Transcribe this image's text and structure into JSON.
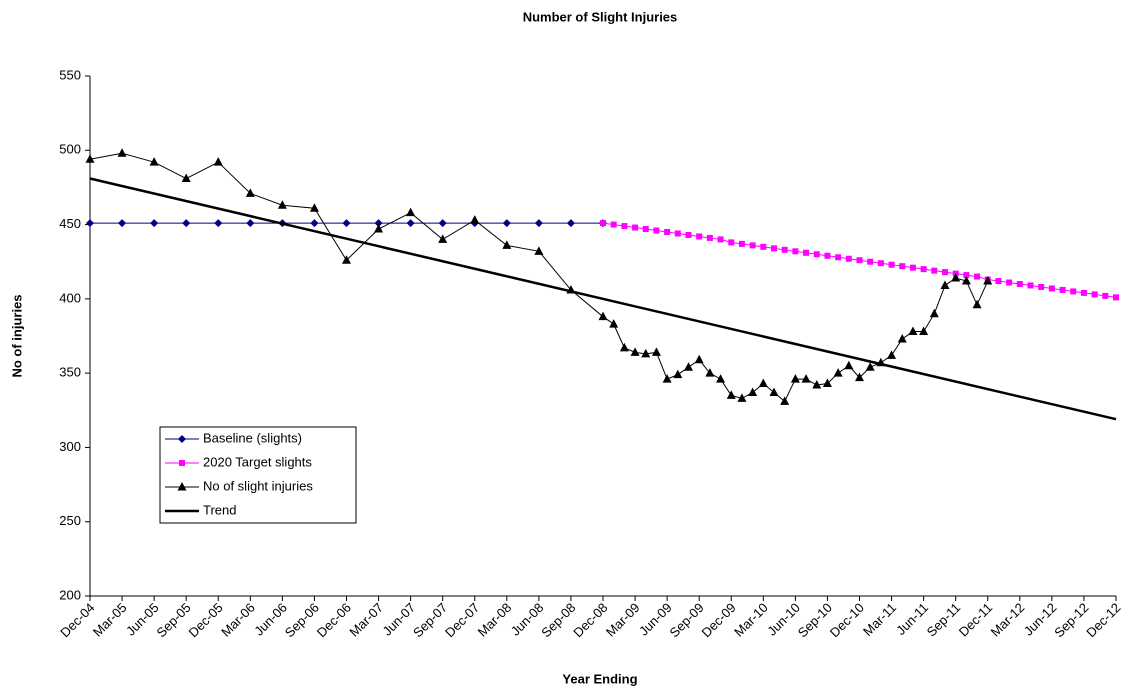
{
  "chart_data": {
    "type": "line",
    "title": "Number of Slight Injuries",
    "xlabel": "Year Ending",
    "ylabel": "No of injuries",
    "xlim": [
      0,
      96
    ],
    "ylim": [
      200,
      550
    ],
    "yticks": [
      200,
      250,
      300,
      350,
      400,
      450,
      500,
      550
    ],
    "grid": false,
    "legend": "lower left",
    "xticks": [
      {
        "value": 0,
        "label": "Dec-04"
      },
      {
        "value": 3,
        "label": "Mar-05"
      },
      {
        "value": 6,
        "label": "Jun-05"
      },
      {
        "value": 9,
        "label": "Sep-05"
      },
      {
        "value": 12,
        "label": "Dec-05"
      },
      {
        "value": 15,
        "label": "Mar-06"
      },
      {
        "value": 18,
        "label": "Jun-06"
      },
      {
        "value": 21,
        "label": "Sep-06"
      },
      {
        "value": 24,
        "label": "Dec-06"
      },
      {
        "value": 27,
        "label": "Mar-07"
      },
      {
        "value": 30,
        "label": "Jun-07"
      },
      {
        "value": 33,
        "label": "Sep-07"
      },
      {
        "value": 36,
        "label": "Dec-07"
      },
      {
        "value": 39,
        "label": "Mar-08"
      },
      {
        "value": 42,
        "label": "Jun-08"
      },
      {
        "value": 45,
        "label": "Sep-08"
      },
      {
        "value": 48,
        "label": "Dec-08"
      },
      {
        "value": 51,
        "label": "Mar-09"
      },
      {
        "value": 54,
        "label": "Jun-09"
      },
      {
        "value": 57,
        "label": "Sep-09"
      },
      {
        "value": 60,
        "label": "Dec-09"
      },
      {
        "value": 63,
        "label": "Mar-10"
      },
      {
        "value": 66,
        "label": "Jun-10"
      },
      {
        "value": 69,
        "label": "Sep-10"
      },
      {
        "value": 72,
        "label": "Dec-10"
      },
      {
        "value": 75,
        "label": "Mar-11"
      },
      {
        "value": 78,
        "label": "Jun-11"
      },
      {
        "value": 81,
        "label": "Sep-11"
      },
      {
        "value": 84,
        "label": "Dec-11"
      },
      {
        "value": 87,
        "label": "Mar-12"
      },
      {
        "value": 90,
        "label": "Jun-12"
      },
      {
        "value": 93,
        "label": "Sep-12"
      },
      {
        "value": 96,
        "label": "Dec-12"
      }
    ],
    "series": [
      {
        "name": "Baseline (slights)",
        "color": "#000080",
        "marker": "diamond",
        "width": 1,
        "x": [
          0,
          3,
          6,
          9,
          12,
          15,
          18,
          21,
          24,
          27,
          30,
          33,
          36,
          39,
          42,
          45,
          48
        ],
        "values": [
          451,
          451,
          451,
          451,
          451,
          451,
          451,
          451,
          451,
          451,
          451,
          451,
          451,
          451,
          451,
          451,
          451
        ]
      },
      {
        "name": "2020 Target slights",
        "color": "#ff00ff",
        "marker": "square",
        "width": 1,
        "x": [
          48,
          49,
          50,
          51,
          52,
          53,
          54,
          55,
          56,
          57,
          58,
          59,
          60,
          61,
          62,
          63,
          64,
          65,
          66,
          67,
          68,
          69,
          70,
          71,
          72,
          73,
          74,
          75,
          76,
          77,
          78,
          79,
          80,
          81,
          82,
          83,
          84,
          85,
          86,
          87,
          88,
          89,
          90,
          91,
          92,
          93,
          94,
          95,
          96
        ],
        "values": [
          451,
          450,
          449,
          448,
          447,
          446,
          445,
          444,
          443,
          442,
          441,
          440,
          438,
          437,
          436,
          435,
          434,
          433,
          432,
          431,
          430,
          429,
          428,
          427,
          426,
          425,
          424,
          423,
          422,
          421,
          420,
          419,
          418,
          417,
          416,
          415,
          413,
          412,
          411,
          410,
          409,
          408,
          407,
          406,
          405,
          404,
          403,
          402,
          401
        ]
      },
      {
        "name": "No of slight injuries",
        "color": "#000000",
        "marker": "triangle",
        "width": 1,
        "x": [
          0,
          3,
          6,
          9,
          12,
          15,
          18,
          21,
          24,
          27,
          30,
          33,
          36,
          39,
          42,
          45,
          48,
          49,
          50,
          51,
          52,
          53,
          54,
          55,
          56,
          57,
          58,
          59,
          60,
          61,
          62,
          63,
          64,
          65,
          66,
          67,
          68,
          69,
          70,
          71,
          72,
          73,
          74,
          75,
          76,
          77,
          78,
          79,
          80,
          81,
          82,
          83,
          84
        ],
        "values": [
          494,
          498,
          492,
          481,
          492,
          471,
          463,
          461,
          426,
          447,
          458,
          440,
          453,
          436,
          432,
          406,
          388,
          383,
          367,
          364,
          363,
          364,
          346,
          349,
          354,
          359,
          350,
          346,
          335,
          333,
          337,
          343,
          337,
          331,
          346,
          346,
          342,
          343,
          350,
          355,
          347,
          354,
          357,
          362,
          373,
          378,
          378,
          390,
          409,
          414,
          412,
          396,
          412
        ]
      },
      {
        "name": "Trend",
        "color": "#000000",
        "marker": null,
        "width": 2.5,
        "x": [
          0,
          96
        ],
        "values": [
          481,
          319
        ]
      }
    ]
  }
}
